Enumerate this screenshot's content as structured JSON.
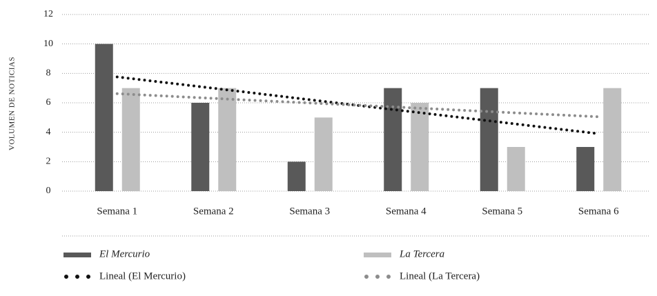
{
  "chart_data": {
    "type": "bar",
    "y_label": "VOLUMEN DE NOTICIAS",
    "categories": [
      "Semana 1",
      "Semana 2",
      "Semana 3",
      "Semana 4",
      "Semana 5",
      "Semana 6"
    ],
    "series": [
      {
        "name": "El Mercurio",
        "color": "#595959",
        "kind": "bar",
        "values": [
          10,
          6,
          2,
          7,
          7,
          3
        ]
      },
      {
        "name": "La Tercera",
        "color": "#bfbfbf",
        "kind": "bar",
        "values": [
          7,
          7,
          5,
          6,
          3,
          7
        ]
      },
      {
        "name": "Lineal (El Mercurio)",
        "color": "#111111",
        "kind": "trend",
        "values": [
          7.76,
          6.99,
          6.21,
          5.44,
          4.67,
          3.9
        ]
      },
      {
        "name": "Lineal (La Tercera)",
        "color": "#8c8c8c",
        "kind": "trend",
        "values": [
          6.62,
          6.3,
          5.99,
          5.68,
          5.36,
          5.05
        ]
      }
    ],
    "ylim": [
      0,
      12
    ],
    "yticks": [
      0,
      2,
      4,
      6,
      8,
      10,
      12
    ],
    "grid": true,
    "legend": "bottom"
  }
}
